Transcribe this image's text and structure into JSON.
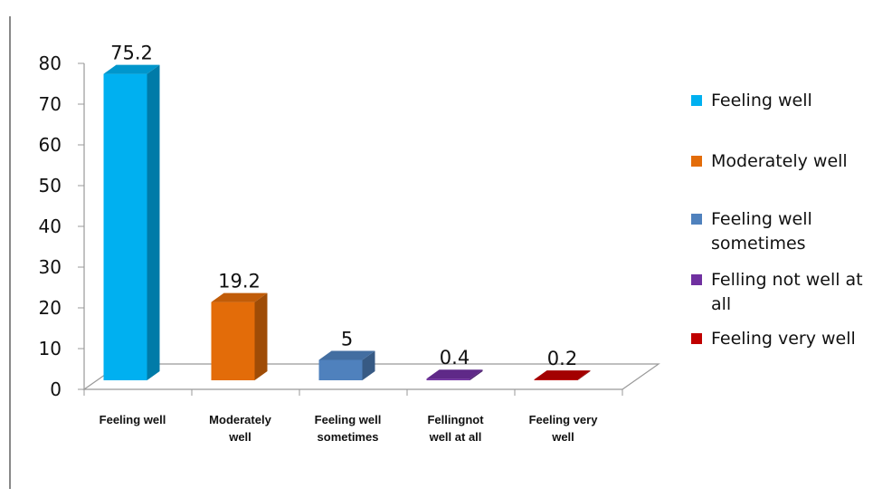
{
  "chart_data": {
    "type": "bar",
    "categories": [
      [
        "Feeling well"
      ],
      [
        "Moderately",
        "well"
      ],
      [
        "Feeling well",
        "sometimes"
      ],
      [
        "Fellingnot",
        "well at all"
      ],
      [
        "Feeling very",
        "well"
      ]
    ],
    "values": [
      75.2,
      19.2,
      5,
      0.4,
      0.2
    ],
    "data_labels": [
      "75.2",
      "19.2",
      "5",
      "0.4",
      "0.2"
    ],
    "colors": [
      "#00B0F0",
      "#E36C09",
      "#4F81BD",
      "#7030A0",
      "#C00000"
    ],
    "ylim": [
      0,
      80
    ],
    "yticks": [
      "0",
      "10",
      "20",
      "30",
      "40",
      "50",
      "60",
      "70",
      "80"
    ],
    "legend": {
      "position": "right",
      "entries": [
        [
          "Feeling well"
        ],
        [
          "Moderately well"
        ],
        [
          "Feeling well",
          "sometimes"
        ],
        [
          "Felling not well at",
          "all"
        ],
        [
          "Feeling very well"
        ]
      ]
    },
    "title": "",
    "xlabel": "",
    "ylabel": "",
    "grid": false
  }
}
